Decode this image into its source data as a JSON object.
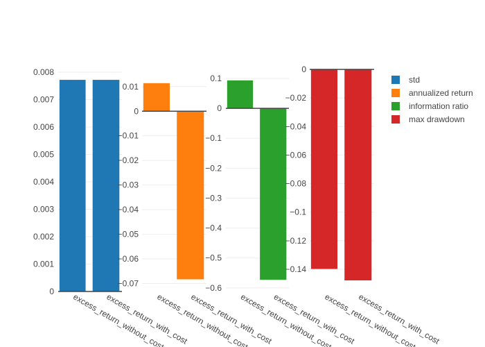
{
  "chart_data": [
    {
      "type": "bar",
      "categories": [
        "excess_return_without_cost",
        "excess_return_with_cost"
      ],
      "series": [
        {
          "name": "std",
          "values": [
            0.00772,
            0.00772
          ]
        }
      ],
      "ylim": [
        0,
        0.008
      ],
      "yticks": [
        0,
        0.001,
        0.002,
        0.003,
        0.004,
        0.005,
        0.006,
        0.007,
        0.008
      ],
      "ytick_labels": [
        "0",
        "0.001",
        "0.002",
        "0.003",
        "0.004",
        "0.005",
        "0.006",
        "0.007",
        "0.008"
      ],
      "color": "#1f77b4",
      "grid": true
    },
    {
      "type": "bar",
      "categories": [
        "excess_return_without_cost",
        "excess_return_with_cost"
      ],
      "series": [
        {
          "name": "annualized return",
          "values": [
            0.0114,
            -0.0683
          ]
        }
      ],
      "ylim": [
        -0.0707,
        0.0122
      ],
      "yticks": [
        0.01,
        0,
        -0.01,
        -0.02,
        -0.03,
        -0.04,
        -0.05,
        -0.06,
        -0.07
      ],
      "ytick_labels": [
        "0.01",
        "0",
        "−0.01",
        "−0.02",
        "−0.03",
        "−0.04",
        "−0.05",
        "−0.06",
        "−0.07"
      ],
      "color": "#ff7f0e",
      "grid": true
    },
    {
      "type": "bar",
      "categories": [
        "excess_return_without_cost",
        "excess_return_with_cost"
      ],
      "series": [
        {
          "name": "information ratio",
          "values": [
            0.0935,
            -0.573
          ]
        }
      ],
      "ylim": [
        -0.605,
        0.1
      ],
      "yticks": [
        0.1,
        0,
        -0.1,
        -0.2,
        -0.3,
        -0.4,
        -0.5,
        -0.6
      ],
      "ytick_labels": [
        "0.1",
        "0",
        "−0.1",
        "−0.2",
        "−0.3",
        "−0.4",
        "−0.5",
        "−0.6"
      ],
      "color": "#2ca02c",
      "grid": true
    },
    {
      "type": "bar",
      "categories": [
        "excess_return_without_cost",
        "excess_return_with_cost"
      ],
      "series": [
        {
          "name": "max drawdown",
          "values": [
            -0.1398,
            -0.1478
          ]
        }
      ],
      "ylim": [
        -0.1478,
        0
      ],
      "yticks": [
        0,
        -0.02,
        -0.04,
        -0.06,
        -0.08,
        -0.1,
        -0.12,
        -0.14
      ],
      "ytick_labels": [
        "0",
        "−0.02",
        "−0.04",
        "−0.06",
        "−0.08",
        "−0.1",
        "−0.12",
        "−0.14"
      ],
      "color": "#d62728",
      "grid": true
    }
  ],
  "legend": {
    "placement": "right",
    "items": [
      {
        "label": "std",
        "color": "#1f77b4"
      },
      {
        "label": "annualized return",
        "color": "#ff7f0e"
      },
      {
        "label": "information ratio",
        "color": "#2ca02c"
      },
      {
        "label": "max drawdown",
        "color": "#d62728"
      }
    ]
  }
}
